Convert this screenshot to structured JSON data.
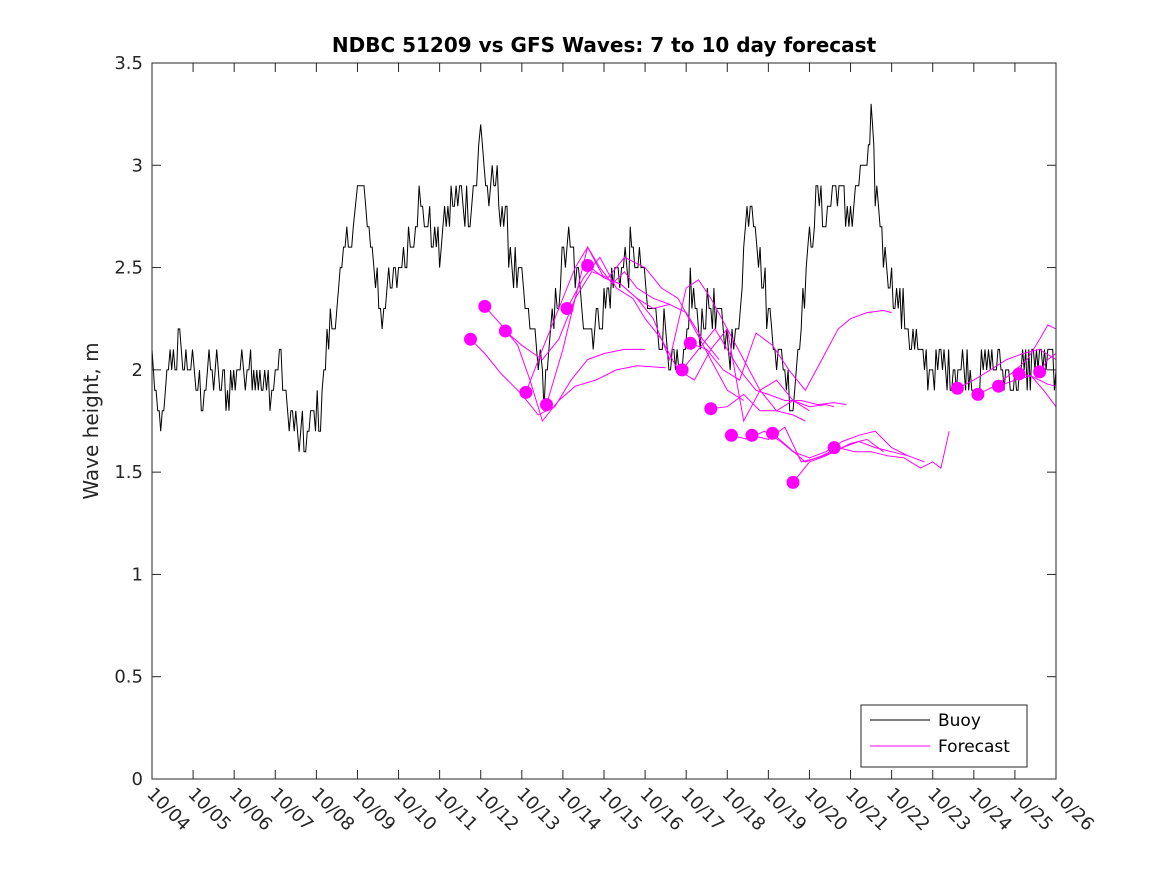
{
  "chart_data": {
    "type": "line",
    "title": "NDBC 51209 vs GFS Waves: 7 to 10 day forecast",
    "xlabel": "",
    "ylabel": "Wave height, m",
    "xlim": [
      0,
      22
    ],
    "ylim": [
      0,
      3.5
    ],
    "x_tick_values": [
      0,
      1,
      2,
      3,
      4,
      5,
      6,
      7,
      8,
      9,
      10,
      11,
      12,
      13,
      14,
      15,
      16,
      17,
      18,
      19,
      20,
      21,
      22
    ],
    "x_tick_labels": [
      "10/04",
      "10/05",
      "10/06",
      "10/07",
      "10/08",
      "10/09",
      "10/10",
      "10/11",
      "10/12",
      "10/13",
      "10/14",
      "10/15",
      "10/16",
      "10/17",
      "10/18",
      "10/19",
      "10/20",
      "10/21",
      "10/22",
      "10/23",
      "10/24",
      "10/25",
      "10/26"
    ],
    "y_ticks": [
      0,
      0.5,
      1,
      1.5,
      2,
      2.5,
      3,
      3.5
    ],
    "y_tick_labels": [
      "0",
      "0.5",
      "1",
      "1.5",
      "2",
      "2.5",
      "3",
      "3.5"
    ],
    "legend": {
      "position": "bottom-right",
      "entries": [
        "Buoy",
        "Forecast"
      ]
    },
    "colors": {
      "buoy": "#000000",
      "forecast": "#ff00ff",
      "axes": "#262626"
    },
    "buoy_keypoints": [
      [
        0.0,
        2.1
      ],
      [
        0.1,
        1.8
      ],
      [
        0.25,
        1.7
      ],
      [
        0.4,
        2.0
      ],
      [
        0.6,
        2.1
      ],
      [
        0.9,
        2.0
      ],
      [
        1.2,
        1.9
      ],
      [
        1.5,
        2.0
      ],
      [
        1.8,
        1.9
      ],
      [
        2.1,
        2.0
      ],
      [
        2.4,
        2.05
      ],
      [
        2.7,
        1.9
      ],
      [
        3.0,
        1.95
      ],
      [
        3.1,
        2.1
      ],
      [
        3.3,
        1.8
      ],
      [
        3.5,
        1.7
      ],
      [
        3.7,
        1.65
      ],
      [
        3.9,
        1.75
      ],
      [
        4.1,
        1.8
      ],
      [
        4.3,
        2.2
      ],
      [
        4.5,
        2.3
      ],
      [
        4.7,
        2.6
      ],
      [
        4.9,
        2.7
      ],
      [
        5.0,
        2.9
      ],
      [
        5.2,
        2.8
      ],
      [
        5.4,
        2.5
      ],
      [
        5.6,
        2.3
      ],
      [
        5.8,
        2.4
      ],
      [
        6.0,
        2.5
      ],
      [
        6.2,
        2.6
      ],
      [
        6.5,
        2.8
      ],
      [
        6.8,
        2.65
      ],
      [
        7.0,
        2.6
      ],
      [
        7.2,
        2.75
      ],
      [
        7.4,
        2.85
      ],
      [
        7.7,
        2.8
      ],
      [
        7.9,
        2.9
      ],
      [
        8.0,
        3.2
      ],
      [
        8.2,
        2.8
      ],
      [
        8.4,
        2.95
      ],
      [
        8.6,
        2.7
      ],
      [
        8.8,
        2.5
      ],
      [
        9.0,
        2.4
      ],
      [
        9.2,
        2.2
      ],
      [
        9.4,
        2.1
      ],
      [
        9.5,
        1.9
      ],
      [
        9.7,
        2.1
      ],
      [
        9.9,
        2.4
      ],
      [
        10.1,
        2.6
      ],
      [
        10.3,
        2.5
      ],
      [
        10.5,
        2.3
      ],
      [
        10.7,
        2.2
      ],
      [
        11.0,
        2.3
      ],
      [
        11.3,
        2.5
      ],
      [
        11.6,
        2.55
      ],
      [
        11.9,
        2.5
      ],
      [
        12.1,
        2.3
      ],
      [
        12.3,
        2.2
      ],
      [
        12.5,
        2.2
      ],
      [
        12.7,
        2.0
      ],
      [
        12.9,
        1.9
      ],
      [
        13.1,
        2.4
      ],
      [
        13.3,
        2.2
      ],
      [
        13.6,
        2.3
      ],
      [
        13.9,
        2.2
      ],
      [
        14.2,
        2.1
      ],
      [
        14.4,
        2.6
      ],
      [
        14.6,
        2.9
      ],
      [
        14.8,
        2.5
      ],
      [
        15.0,
        2.3
      ],
      [
        15.2,
        2.1
      ],
      [
        15.4,
        2.0
      ],
      [
        15.6,
        1.85
      ],
      [
        15.8,
        2.3
      ],
      [
        16.0,
        2.6
      ],
      [
        16.2,
        2.8
      ],
      [
        16.4,
        2.75
      ],
      [
        16.6,
        2.9
      ],
      [
        16.8,
        2.8
      ],
      [
        17.0,
        2.75
      ],
      [
        17.2,
        2.9
      ],
      [
        17.4,
        3.0
      ],
      [
        17.5,
        3.2
      ],
      [
        17.6,
        2.9
      ],
      [
        17.8,
        2.6
      ],
      [
        18.0,
        2.4
      ],
      [
        18.2,
        2.3
      ],
      [
        18.4,
        2.2
      ],
      [
        18.6,
        2.1
      ],
      [
        18.8,
        2.0
      ],
      [
        19.2,
        2.05
      ],
      [
        19.5,
        2.0
      ],
      [
        19.8,
        2.0
      ],
      [
        20.1,
        1.95
      ],
      [
        20.4,
        2.05
      ],
      [
        20.7,
        2.0
      ],
      [
        21.0,
        1.95
      ],
      [
        21.3,
        2.0
      ],
      [
        21.6,
        2.05
      ],
      [
        22.0,
        2.0
      ]
    ],
    "forecast_points": [
      [
        7.75,
        2.15
      ],
      [
        8.1,
        2.31
      ],
      [
        8.6,
        2.19
      ],
      [
        9.1,
        1.89
      ],
      [
        9.6,
        1.83
      ],
      [
        10.1,
        2.3
      ],
      [
        10.6,
        2.51
      ],
      [
        12.9,
        2.0
      ],
      [
        13.1,
        2.13
      ],
      [
        13.6,
        1.81
      ],
      [
        14.1,
        1.68
      ],
      [
        14.6,
        1.68
      ],
      [
        15.1,
        1.69
      ],
      [
        15.6,
        1.45
      ],
      [
        16.6,
        1.62
      ],
      [
        19.6,
        1.91
      ],
      [
        20.1,
        1.88
      ],
      [
        20.6,
        1.92
      ],
      [
        21.1,
        1.98
      ],
      [
        21.6,
        1.99
      ]
    ],
    "forecast_series": [
      {
        "name": "fc1",
        "points": [
          [
            7.75,
            2.15
          ],
          [
            8.1,
            2.08
          ],
          [
            8.5,
            1.98
          ],
          [
            9.0,
            1.88
          ],
          [
            9.4,
            1.78
          ],
          [
            9.8,
            1.82
          ],
          [
            10.2,
            1.95
          ],
          [
            10.6,
            2.05
          ],
          [
            11.0,
            2.08
          ],
          [
            11.5,
            2.1
          ],
          [
            12.0,
            2.1
          ]
        ]
      },
      {
        "name": "fc2",
        "points": [
          [
            8.1,
            2.31
          ],
          [
            8.5,
            2.22
          ],
          [
            8.9,
            2.12
          ],
          [
            9.2,
            1.95
          ],
          [
            9.5,
            1.75
          ],
          [
            9.9,
            1.85
          ],
          [
            10.3,
            1.92
          ],
          [
            10.8,
            1.95
          ],
          [
            11.3,
            2.0
          ],
          [
            11.8,
            2.02
          ],
          [
            12.5,
            2.01
          ]
        ]
      },
      {
        "name": "fc3",
        "points": [
          [
            8.6,
            2.19
          ],
          [
            9.0,
            2.12
          ],
          [
            9.5,
            2.05
          ],
          [
            9.9,
            2.15
          ],
          [
            10.3,
            2.35
          ],
          [
            10.7,
            2.48
          ],
          [
            11.1,
            2.45
          ],
          [
            11.5,
            2.55
          ],
          [
            12.0,
            2.5
          ],
          [
            12.4,
            2.4
          ],
          [
            12.8,
            2.35
          ],
          [
            13.2,
            2.2
          ],
          [
            13.6,
            2.05
          ],
          [
            14.0,
            1.9
          ],
          [
            14.4,
            1.85
          ]
        ]
      },
      {
        "name": "fc4",
        "points": [
          [
            9.1,
            1.89
          ],
          [
            9.5,
            2.1
          ],
          [
            9.9,
            2.3
          ],
          [
            10.3,
            2.5
          ],
          [
            10.6,
            2.6
          ],
          [
            11.0,
            2.45
          ],
          [
            11.4,
            2.42
          ],
          [
            11.8,
            2.35
          ],
          [
            12.2,
            2.3
          ],
          [
            12.6,
            2.32
          ],
          [
            13.0,
            2.28
          ],
          [
            13.4,
            2.15
          ],
          [
            13.8,
            2.05
          ]
        ]
      },
      {
        "name": "fc5",
        "points": [
          [
            9.6,
            1.83
          ],
          [
            10.0,
            2.1
          ],
          [
            10.3,
            2.35
          ],
          [
            10.6,
            2.6
          ],
          [
            10.9,
            2.5
          ],
          [
            11.2,
            2.42
          ],
          [
            11.5,
            2.48
          ],
          [
            11.8,
            2.4
          ],
          [
            12.2,
            2.35
          ],
          [
            12.6,
            2.32
          ]
        ]
      },
      {
        "name": "fc6",
        "points": [
          [
            10.1,
            2.3
          ],
          [
            10.5,
            2.45
          ],
          [
            10.9,
            2.55
          ],
          [
            11.3,
            2.4
          ],
          [
            11.7,
            2.35
          ],
          [
            12.0,
            2.25
          ],
          [
            12.4,
            2.15
          ],
          [
            12.8,
            2.0
          ],
          [
            13.2,
            1.95
          ],
          [
            13.6,
            2.1
          ],
          [
            14.0,
            2.2
          ],
          [
            14.4,
            2.05
          ],
          [
            14.8,
            1.9
          ],
          [
            15.2,
            1.8
          ],
          [
            15.6,
            1.78
          ],
          [
            15.9,
            1.75
          ]
        ]
      },
      {
        "name": "fc7",
        "points": [
          [
            10.6,
            2.51
          ],
          [
            11.0,
            2.45
          ],
          [
            11.4,
            2.42
          ],
          [
            11.8,
            2.35
          ],
          [
            12.2,
            2.25
          ],
          [
            12.6,
            2.05
          ],
          [
            13.0,
            2.4
          ],
          [
            13.3,
            2.44
          ],
          [
            13.6,
            2.35
          ],
          [
            14.0,
            2.2
          ],
          [
            14.4,
            1.75
          ],
          [
            14.8,
            1.9
          ],
          [
            15.2,
            1.95
          ],
          [
            15.6,
            1.85
          ],
          [
            16.0,
            1.82
          ],
          [
            16.4,
            1.83
          ],
          [
            16.6,
            1.82
          ]
        ]
      },
      {
        "name": "fc8",
        "points": [
          [
            12.9,
            2.0
          ],
          [
            13.3,
            2.1
          ],
          [
            13.7,
            2.2
          ],
          [
            14.0,
            2.1
          ],
          [
            14.3,
            2.0
          ],
          [
            14.7,
            1.9
          ],
          [
            15.0,
            1.88
          ],
          [
            15.4,
            1.85
          ],
          [
            15.8,
            1.85
          ],
          [
            16.2,
            1.83
          ],
          [
            16.6,
            1.84
          ],
          [
            16.9,
            1.83
          ]
        ]
      },
      {
        "name": "fc9",
        "points": [
          [
            13.1,
            2.13
          ],
          [
            13.5,
            2.1
          ],
          [
            13.9,
            2.0
          ],
          [
            14.3,
            1.95
          ],
          [
            14.7,
            2.18
          ],
          [
            15.1,
            2.12
          ],
          [
            15.5,
            2.0
          ],
          [
            15.9,
            1.9
          ],
          [
            16.3,
            2.05
          ],
          [
            16.7,
            2.2
          ],
          [
            17.0,
            2.25
          ],
          [
            17.4,
            2.28
          ],
          [
            17.8,
            2.29
          ],
          [
            18.0,
            2.28
          ]
        ]
      },
      {
        "name": "fc10",
        "points": [
          [
            13.6,
            1.81
          ],
          [
            14.0,
            1.82
          ],
          [
            14.4,
            1.88
          ],
          [
            14.8,
            1.8
          ],
          [
            15.2,
            1.8
          ],
          [
            15.6,
            1.85
          ],
          [
            16.0,
            1.8
          ]
        ]
      },
      {
        "name": "fc11",
        "points": [
          [
            14.1,
            1.68
          ],
          [
            14.5,
            1.66
          ],
          [
            14.9,
            1.7
          ],
          [
            15.3,
            1.65
          ],
          [
            15.6,
            1.6
          ],
          [
            16.0,
            1.57
          ],
          [
            16.4,
            1.6
          ],
          [
            16.8,
            1.65
          ],
          [
            17.2,
            1.68
          ],
          [
            17.6,
            1.7
          ],
          [
            18.0,
            1.62
          ],
          [
            18.4,
            1.58
          ]
        ]
      },
      {
        "name": "fc12",
        "points": [
          [
            14.6,
            1.68
          ],
          [
            15.0,
            1.66
          ],
          [
            15.4,
            1.72
          ],
          [
            15.8,
            1.55
          ],
          [
            16.2,
            1.57
          ],
          [
            16.6,
            1.6
          ],
          [
            17.0,
            1.64
          ],
          [
            17.4,
            1.66
          ],
          [
            17.8,
            1.6
          ]
        ]
      },
      {
        "name": "fc13",
        "points": [
          [
            15.1,
            1.69
          ],
          [
            15.5,
            1.62
          ],
          [
            15.9,
            1.55
          ],
          [
            16.3,
            1.58
          ],
          [
            16.7,
            1.62
          ],
          [
            17.1,
            1.6
          ],
          [
            17.5,
            1.6
          ],
          [
            17.9,
            1.58
          ],
          [
            18.3,
            1.57
          ],
          [
            18.7,
            1.52
          ],
          [
            19.0,
            1.55
          ],
          [
            19.2,
            1.52
          ],
          [
            19.4,
            1.7
          ]
        ]
      },
      {
        "name": "fc14",
        "points": [
          [
            15.6,
            1.45
          ],
          [
            16.0,
            1.55
          ],
          [
            16.4,
            1.58
          ],
          [
            16.8,
            1.62
          ],
          [
            17.2,
            1.65
          ],
          [
            17.6,
            1.62
          ],
          [
            18.0,
            1.6
          ],
          [
            18.4,
            1.58
          ],
          [
            18.8,
            1.55
          ]
        ]
      },
      {
        "name": "fc15",
        "points": [
          [
            19.6,
            1.91
          ],
          [
            20.0,
            1.95
          ],
          [
            20.4,
            2.0
          ],
          [
            20.8,
            2.05
          ],
          [
            21.2,
            2.08
          ],
          [
            21.6,
            2.1
          ],
          [
            22.0,
            2.05
          ]
        ]
      },
      {
        "name": "fc16",
        "points": [
          [
            20.1,
            1.88
          ],
          [
            20.5,
            1.92
          ],
          [
            20.9,
            1.98
          ],
          [
            21.3,
            2.05
          ],
          [
            21.6,
            2.15
          ],
          [
            21.8,
            2.22
          ],
          [
            22.0,
            2.2
          ]
        ]
      },
      {
        "name": "fc17",
        "points": [
          [
            20.6,
            1.92
          ],
          [
            21.0,
            1.95
          ],
          [
            21.4,
            1.97
          ],
          [
            21.8,
            1.93
          ],
          [
            22.0,
            1.92
          ]
        ]
      },
      {
        "name": "fc18",
        "points": [
          [
            21.1,
            1.98
          ],
          [
            21.4,
            1.97
          ],
          [
            21.7,
            1.9
          ],
          [
            22.0,
            1.82
          ]
        ]
      },
      {
        "name": "fc19",
        "points": [
          [
            21.6,
            1.99
          ],
          [
            21.8,
            2.05
          ],
          [
            22.0,
            2.08
          ]
        ]
      }
    ]
  }
}
